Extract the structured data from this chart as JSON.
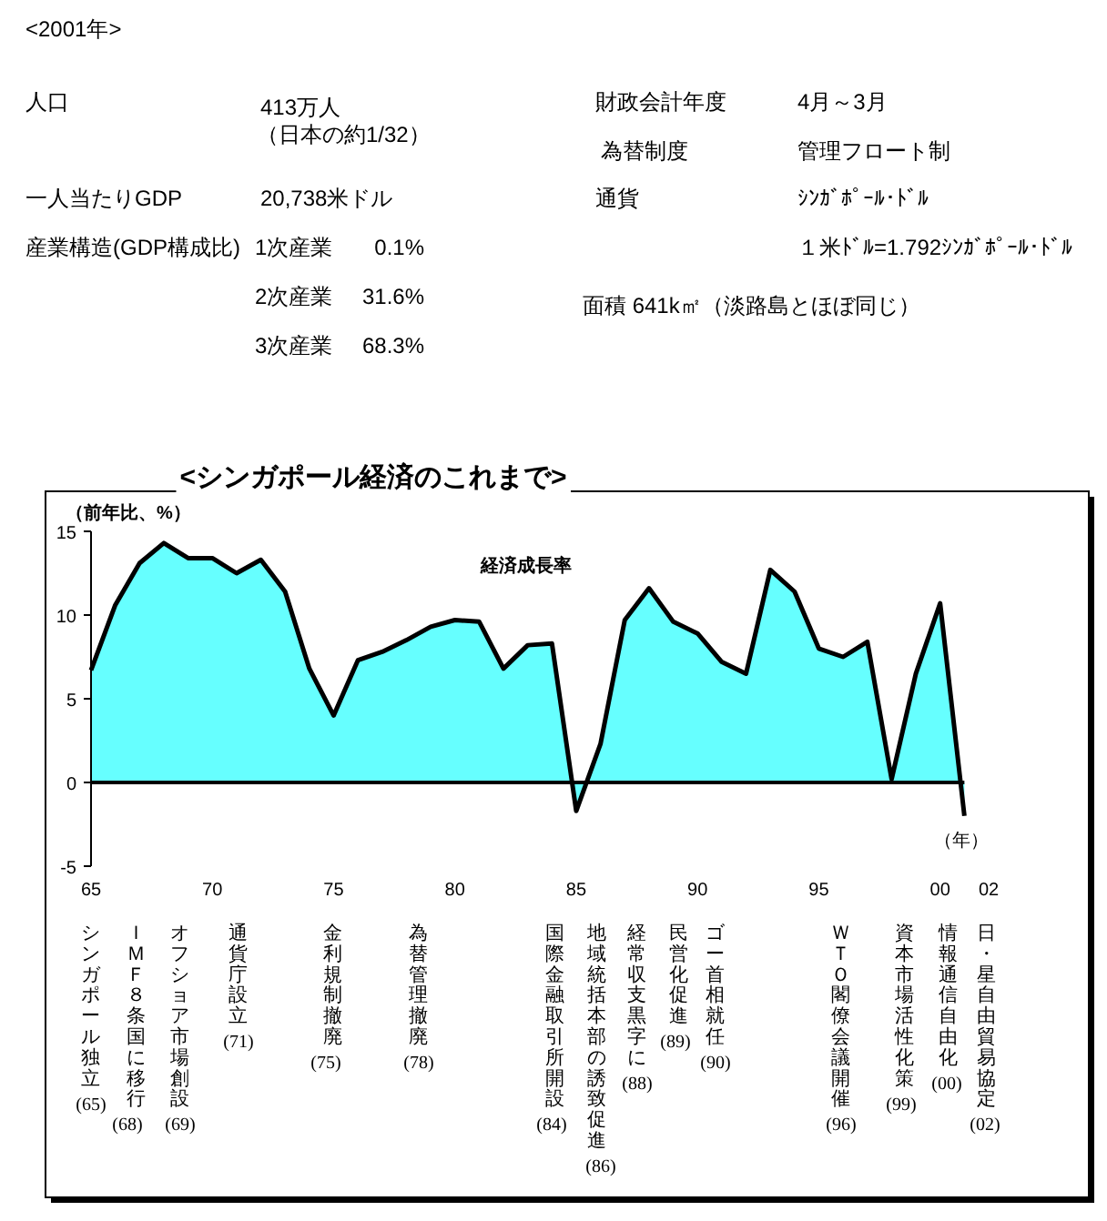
{
  "chart_data": {
    "type": "area",
    "title": "<シンガポール経済のこれまで>",
    "ylabel": "（前年比、%）",
    "xlabel": "（年）",
    "x": [
      1965,
      1966,
      1967,
      1968,
      1969,
      1970,
      1971,
      1972,
      1973,
      1974,
      1975,
      1976,
      1977,
      1978,
      1979,
      1980,
      1981,
      1982,
      1983,
      1984,
      1985,
      1986,
      1987,
      1988,
      1989,
      1990,
      1991,
      1992,
      1993,
      1994,
      1995,
      1996,
      1997,
      1998,
      1999,
      2000,
      2001
    ],
    "series": [
      {
        "name": "経済成長率",
        "color": "#66ffff",
        "values": [
          6.7,
          10.6,
          13.1,
          14.3,
          13.4,
          13.4,
          12.5,
          13.3,
          11.4,
          6.8,
          4.0,
          7.3,
          7.8,
          8.5,
          9.3,
          9.7,
          9.6,
          6.8,
          8.2,
          8.3,
          -1.7,
          2.3,
          9.7,
          11.6,
          9.6,
          8.9,
          7.2,
          6.5,
          12.7,
          11.4,
          8.0,
          7.5,
          8.4,
          0.2,
          6.5,
          10.7,
          -2.0
        ]
      }
    ],
    "xlim": [
      1965,
      2002
    ],
    "xticks": [
      {
        "value": 1965,
        "label": "65"
      },
      {
        "value": 1970,
        "label": "70"
      },
      {
        "value": 1975,
        "label": "75"
      },
      {
        "value": 1980,
        "label": "80"
      },
      {
        "value": 1985,
        "label": "85"
      },
      {
        "value": 1990,
        "label": "90"
      },
      {
        "value": 1995,
        "label": "95"
      },
      {
        "value": 2000,
        "label": "00"
      },
      {
        "value": 2002,
        "label": "02"
      }
    ],
    "ylim": [
      -5,
      15
    ],
    "yticks": [
      -5,
      0,
      5,
      10,
      15
    ],
    "annotations": [
      "<2001年>",
      "人口",
      "413万人",
      "（日本の約1/32）",
      "一人当たりGDP",
      "20,738米ドル",
      "産業構造(GDP構成比)",
      "1次産業",
      "0.1%",
      "2次産業",
      "31.6%",
      "3次産業",
      "68.3%",
      "財政会計年度",
      "4月～3月",
      "為替制度",
      "管理フロート制",
      "通貨",
      "ｼﾝｶﾞﾎﾟｰﾙ･ﾄﾞﾙ",
      "１米ﾄﾞﾙ=1.792ｼﾝｶﾞﾎﾟｰﾙ･ﾄﾞﾙ",
      "面積 641k㎡（淡路島とほぼ同じ）",
      "シンガポール独立",
      "(65)",
      "ＩＭＦ８条国に移行",
      "(68)",
      "オフショア市場創設",
      "(69)",
      "通貨庁設立",
      "(71)",
      "金利規制撤廃",
      "(75)",
      "為替管理撤廃",
      "(78)",
      "国際金融取引所開設",
      "(84)",
      "地域統括本部の誘致促進",
      "(86)",
      "経常収支黒字に",
      "(88)",
      "民営化促進",
      "(89)",
      "ゴー首相就任",
      "(90)",
      "ＷＴＯ閣僚会議開催",
      "(96)",
      "資本市場活性化策",
      "(99)",
      "情報通信自由化",
      "(00)",
      "日・星自由貿易協定",
      "(02)"
    ]
  }
}
